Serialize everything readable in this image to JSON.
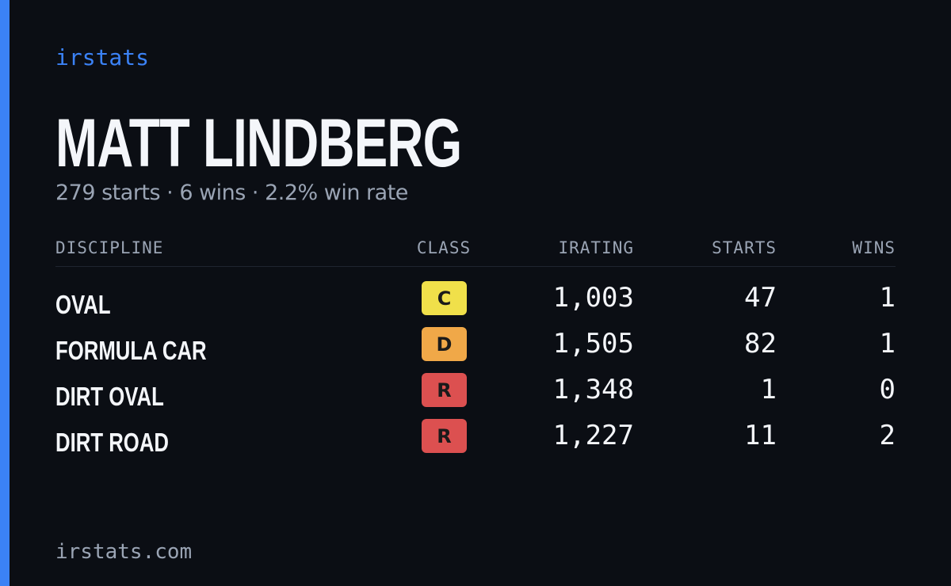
{
  "brand": "irstats",
  "driver": {
    "name": "MATT LINDBERG",
    "summary": "279 starts · 6 wins · 2.2% win rate"
  },
  "table": {
    "columns": [
      "DISCIPLINE",
      "CLASS",
      "IRATING",
      "STARTS",
      "WINS"
    ],
    "rows": [
      [
        "OVAL",
        "C",
        "1,003",
        "47",
        "1"
      ],
      [
        "FORMULA CAR",
        "D",
        "1,505",
        "82",
        "1"
      ],
      [
        "DIRT OVAL",
        "R",
        "1,348",
        "1",
        "0"
      ],
      [
        "DIRT ROAD",
        "R",
        "1,227",
        "11",
        "2"
      ]
    ]
  },
  "footer": "irstats.com"
}
